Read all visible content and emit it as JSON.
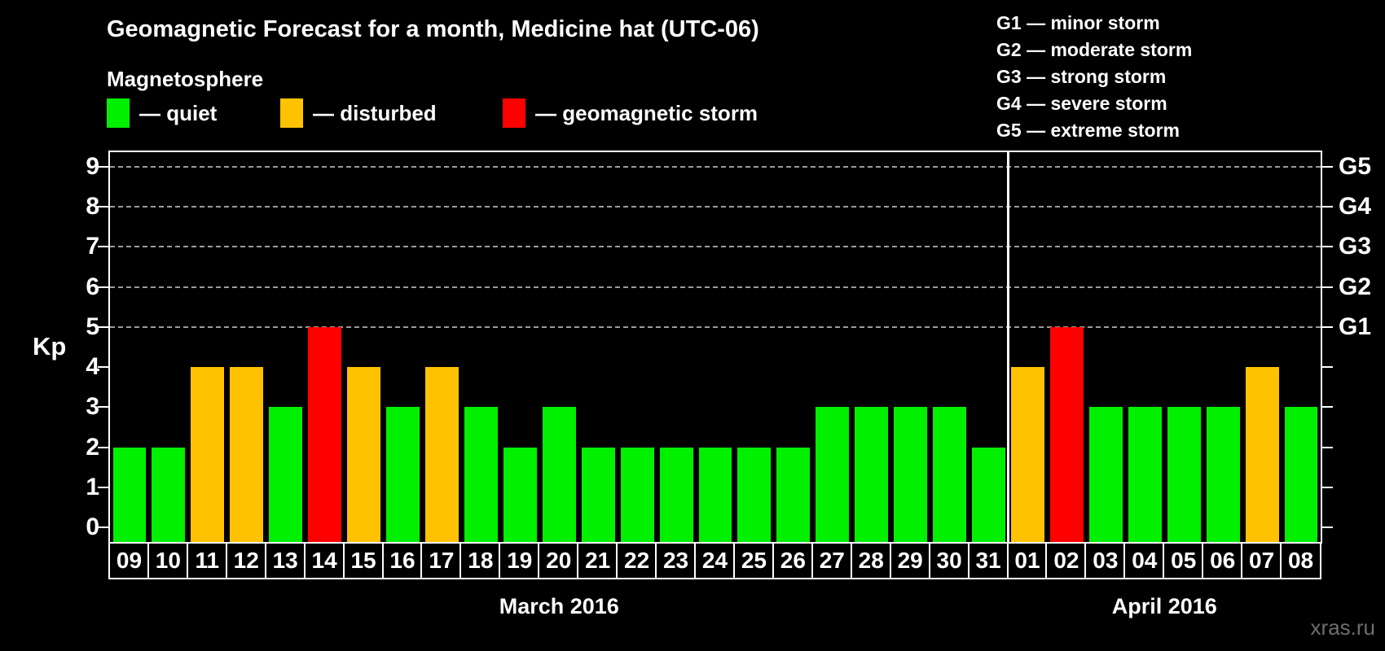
{
  "header": {
    "title": "Geomagnetic Forecast for a month, Medicine hat (UTC-06)"
  },
  "magnetosphere_legend": {
    "heading": "Magnetosphere",
    "items": [
      {
        "name": "quiet",
        "label": "— quiet",
        "color": "#00f000"
      },
      {
        "name": "disturbed",
        "label": "— disturbed",
        "color": "#ffc200"
      },
      {
        "name": "storm",
        "label": "— geomagnetic storm",
        "color": "#ff0000"
      }
    ]
  },
  "storm_scale_legend": {
    "lines": [
      {
        "label": "G1 — minor storm"
      },
      {
        "label": "G2 — moderate storm"
      },
      {
        "label": "G3 — strong storm"
      },
      {
        "label": "G4 — severe storm"
      },
      {
        "label": "G5 — extreme storm"
      }
    ]
  },
  "watermark": "xras.ru",
  "chart_data": {
    "type": "bar",
    "title": "Geomagnetic Forecast for a month, Medicine hat (UTC-06)",
    "ylabel": "Kp",
    "ylim": [
      0,
      9
    ],
    "yticks": [
      0,
      1,
      2,
      3,
      4,
      5,
      6,
      7,
      8,
      9
    ],
    "gridlines_at_kp": [
      5,
      6,
      7,
      8,
      9
    ],
    "grid": "dashed horizontal lines at Kp 5-9 only",
    "right_axis": {
      "labels": [
        {
          "kp": 5,
          "label": "G1"
        },
        {
          "kp": 6,
          "label": "G2"
        },
        {
          "kp": 7,
          "label": "G3"
        },
        {
          "kp": 8,
          "label": "G4"
        },
        {
          "kp": 9,
          "label": "G5"
        }
      ]
    },
    "level_colors": {
      "quiet": "#00f000",
      "disturbed": "#ffc200",
      "storm": "#ff0000"
    },
    "months": [
      {
        "label": "March 2016",
        "days": 23
      },
      {
        "label": "April 2016",
        "days": 8
      }
    ],
    "categories": [
      "09",
      "10",
      "11",
      "12",
      "13",
      "14",
      "15",
      "16",
      "17",
      "18",
      "19",
      "20",
      "21",
      "22",
      "23",
      "24",
      "25",
      "26",
      "27",
      "28",
      "29",
      "30",
      "31",
      "01",
      "02",
      "03",
      "04",
      "05",
      "06",
      "07",
      "08"
    ],
    "values": [
      2,
      2,
      4,
      4,
      3,
      5,
      4,
      3,
      4,
      3,
      2,
      3,
      2,
      2,
      2,
      2,
      2,
      2,
      3,
      3,
      3,
      3,
      2,
      4,
      5,
      3,
      3,
      3,
      3,
      4,
      3
    ],
    "levels": [
      "quiet",
      "quiet",
      "disturbed",
      "disturbed",
      "quiet",
      "storm",
      "disturbed",
      "quiet",
      "disturbed",
      "quiet",
      "quiet",
      "quiet",
      "quiet",
      "quiet",
      "quiet",
      "quiet",
      "quiet",
      "quiet",
      "quiet",
      "quiet",
      "quiet",
      "quiet",
      "quiet",
      "disturbed",
      "storm",
      "quiet",
      "quiet",
      "quiet",
      "quiet",
      "disturbed",
      "quiet"
    ]
  }
}
